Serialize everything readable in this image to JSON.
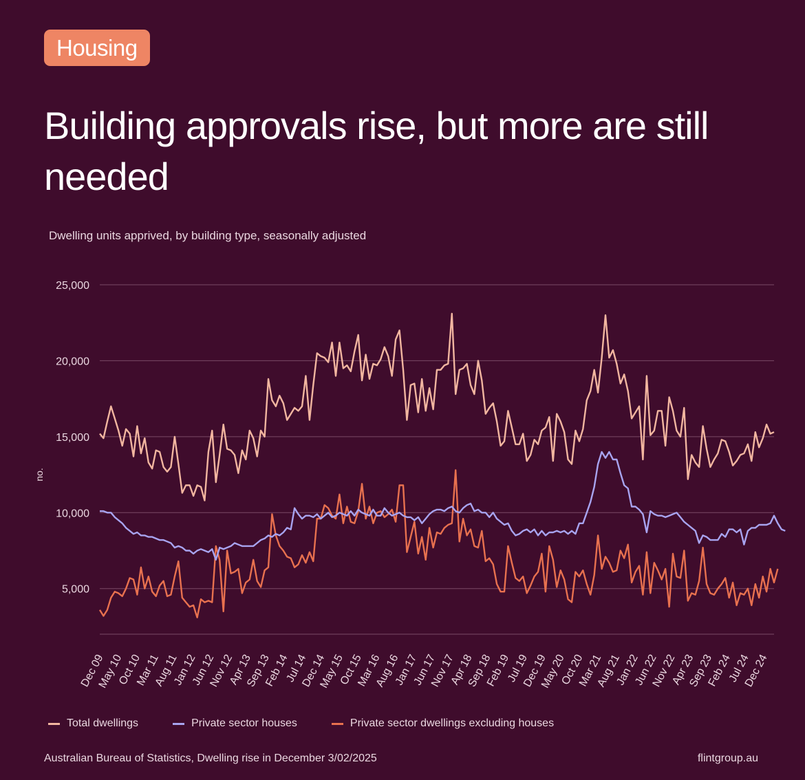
{
  "badge": "Housing",
  "title": "Building approvals rise, but more are still needed",
  "subtitle": "Dwelling units apprived, by building type, seasonally adjusted",
  "footer": {
    "source": "Australian Bureau of Statistics, Dwelling rise in December 3/02/2025",
    "site": "flintgroup.au"
  },
  "colors": {
    "background": "#3f0c2c",
    "total": "#f2b6a0",
    "houses": "#a8a4f0",
    "excl_houses": "#e8714f",
    "grid": "#7a4a66"
  },
  "chart_data": {
    "type": "line",
    "ylabel": "no.",
    "ylim": [
      2000,
      25000
    ],
    "yticks": [
      5000,
      10000,
      15000,
      20000,
      25000
    ],
    "ytick_labels": [
      "5,000",
      "10,000",
      "15,000",
      "20,000",
      "25,000"
    ],
    "x_tick_labels": [
      "Dec 09",
      "May 10",
      "Oct 10",
      "Mar 11",
      "Aug 11",
      "Jan 12",
      "Jun 12",
      "Nov 12",
      "Apr 13",
      "Sep 13",
      "Feb 14",
      "Jul 14",
      "Dec 14",
      "May 15",
      "Oct 15",
      "Mar 16",
      "Aug 16",
      "Jan 17",
      "Jun 17",
      "Nov 17",
      "Apr 18",
      "Sep 18",
      "Feb 19",
      "Jul 19",
      "Dec 19",
      "May 20",
      "Oct 20",
      "Mar 21",
      "Aug 21",
      "Jan 22",
      "Jun 22",
      "Nov 22",
      "Apr 23",
      "Sep 23",
      "Feb 24",
      "Jul 24",
      "Dec 24"
    ],
    "period": "Dec 09 – Dec 24 (monthly)",
    "grid": true,
    "legend_position": "bottom",
    "series": [
      {
        "name": "Total dwellings",
        "values": [
          15200,
          14900,
          16000,
          17000,
          16200,
          15400,
          14400,
          15500,
          15200,
          13700,
          15700,
          13900,
          14900,
          13300,
          12900,
          14100,
          14000,
          13000,
          12700,
          13000,
          15000,
          13200,
          11300,
          11800,
          11800,
          11100,
          11800,
          11700,
          10800,
          14000,
          15400,
          12000,
          13800,
          15800,
          14200,
          14100,
          13800,
          12600,
          14100,
          13500,
          15400,
          14900,
          13700,
          15400,
          15000,
          18800,
          17400,
          17000,
          17700,
          17200,
          16100,
          16500,
          16900,
          16700,
          17000,
          19000,
          16100,
          18400,
          20500,
          20300,
          20200,
          19900,
          21200,
          19000,
          21200,
          19500,
          19700,
          19300,
          20600,
          21700,
          18700,
          20400,
          18800,
          19800,
          19700,
          20100,
          20900,
          20300,
          19000,
          21400,
          22000,
          19400,
          16100,
          18400,
          18500,
          16600,
          18800,
          16700,
          18200,
          16800,
          19400,
          19400,
          19700,
          19800,
          23100,
          17800,
          19400,
          19500,
          19800,
          18400,
          17800,
          20000,
          18700,
          16500,
          16900,
          17200,
          16000,
          14400,
          14700,
          16700,
          15600,
          14500,
          14500,
          15200,
          13400,
          13800,
          14800,
          14500,
          15400,
          15600,
          16300,
          13400,
          16500,
          16000,
          15300,
          13500,
          13200,
          15400,
          14700,
          15500,
          17400,
          18000,
          19400,
          17900,
          20200,
          23000,
          20200,
          20700,
          19800,
          18500,
          19100,
          18000,
          16200,
          16600,
          17000,
          13500,
          19000,
          15100,
          15400,
          16700,
          16700,
          14400,
          17600,
          16700,
          15400,
          15000,
          16900,
          12200,
          13800,
          13300,
          13000,
          15700,
          14200,
          13000,
          13500,
          13900,
          14800,
          14700,
          14000,
          13100,
          13400,
          13800,
          13900,
          14500,
          13400,
          15300,
          14300,
          14900,
          15800,
          15200,
          15300
        ]
      },
      {
        "name": "Private sector houses",
        "values": [
          10100,
          10100,
          10000,
          10000,
          9700,
          9500,
          9300,
          9000,
          8800,
          8600,
          8700,
          8500,
          8500,
          8400,
          8400,
          8300,
          8200,
          8200,
          8100,
          8000,
          7700,
          7800,
          7700,
          7500,
          7500,
          7300,
          7500,
          7600,
          7500,
          7400,
          7600,
          6900,
          7700,
          7600,
          7700,
          7800,
          8000,
          7900,
          7800,
          7800,
          7800,
          7800,
          8000,
          8200,
          8300,
          8500,
          8400,
          8600,
          8500,
          8700,
          9000,
          8900,
          10300,
          9900,
          9600,
          9800,
          9800,
          9700,
          9900,
          9600,
          9800,
          10000,
          9700,
          9800,
          10000,
          9900,
          9800,
          10100,
          9800,
          10200,
          10000,
          9900,
          9800,
          10200,
          9800,
          9800,
          10300,
          10000,
          9800,
          9900,
          10000,
          9800,
          9700,
          9700,
          9500,
          9700,
          9300,
          9600,
          9900,
          10100,
          10200,
          10200,
          10100,
          10300,
          10400,
          10100,
          10000,
          10300,
          10500,
          10600,
          10100,
          10200,
          10000,
          10000,
          9700,
          10000,
          9600,
          9400,
          9200,
          9300,
          8800,
          8500,
          8600,
          8800,
          8900,
          8700,
          8900,
          8500,
          8800,
          8500,
          8700,
          8700,
          8800,
          8700,
          8800,
          8600,
          8800,
          8600,
          9300,
          9300,
          10000,
          10700,
          11700,
          13200,
          14000,
          13600,
          14000,
          13500,
          13500,
          12600,
          11800,
          11600,
          10400,
          10400,
          10200,
          9900,
          8700,
          10100,
          9900,
          9800,
          9800,
          9700,
          9800,
          9900,
          10000,
          9700,
          9400,
          9200,
          9000,
          8800,
          8000,
          8500,
          8400,
          8200,
          8200,
          8200,
          8600,
          8400,
          8900,
          8900,
          8700,
          8900,
          7900,
          8800,
          9000,
          9000,
          9200,
          9200,
          9200,
          9300,
          9800,
          9300,
          8900,
          8800
        ]
      },
      {
        "name": "Private sector dwellings excluding houses",
        "values": [
          3600,
          3200,
          3600,
          4400,
          4800,
          4700,
          4500,
          5000,
          5700,
          5600,
          4600,
          6400,
          5000,
          5800,
          4800,
          4500,
          5200,
          5500,
          4500,
          4600,
          5800,
          6800,
          4400,
          4100,
          3800,
          3900,
          3100,
          4300,
          4100,
          4200,
          4100,
          7800,
          6900,
          3500,
          7500,
          6000,
          6100,
          6300,
          4700,
          5400,
          5600,
          6900,
          5500,
          5100,
          6200,
          6400,
          9900,
          8500,
          7800,
          7500,
          7100,
          7000,
          6400,
          6600,
          7200,
          6700,
          7400,
          6800,
          9600,
          9600,
          10500,
          10300,
          9800,
          9600,
          11200,
          9300,
          10400,
          9400,
          9300,
          10100,
          11900,
          9600,
          10400,
          9300,
          10000,
          10100,
          9700,
          9900,
          10200,
          9400,
          11800,
          11800,
          7400,
          8400,
          9400,
          7300,
          8400,
          6900,
          9000,
          7700,
          8700,
          8600,
          9000,
          9200,
          9300,
          12800,
          8100,
          9600,
          8500,
          8900,
          7800,
          7700,
          8800,
          6800,
          7000,
          6600,
          5300,
          4800,
          4800,
          7800,
          6700,
          5700,
          5500,
          5800,
          4700,
          5200,
          5800,
          6100,
          7300,
          4800,
          7800,
          6900,
          5100,
          6200,
          5600,
          4300,
          4100,
          6100,
          5800,
          6200,
          5300,
          4600,
          5900,
          8500,
          6300,
          7100,
          6700,
          6100,
          6200,
          7500,
          7000,
          7900,
          5400,
          6100,
          6500,
          4600,
          7400,
          4700,
          6700,
          6200,
          5600,
          6300,
          3800,
          7300,
          5800,
          5700,
          7500,
          4200,
          4700,
          4600,
          5500,
          7700,
          5300,
          4700,
          4600,
          5000,
          5300,
          5700,
          4400,
          5400,
          3900,
          4700,
          4600,
          5000,
          3900,
          5300,
          4400,
          5800,
          4800,
          6300,
          5400,
          6300
        ]
      }
    ]
  },
  "legend": {
    "total_label": "Total dwellings",
    "houses_label": "Private sector houses",
    "excl_label": "Private sector dwellings excluding houses"
  }
}
